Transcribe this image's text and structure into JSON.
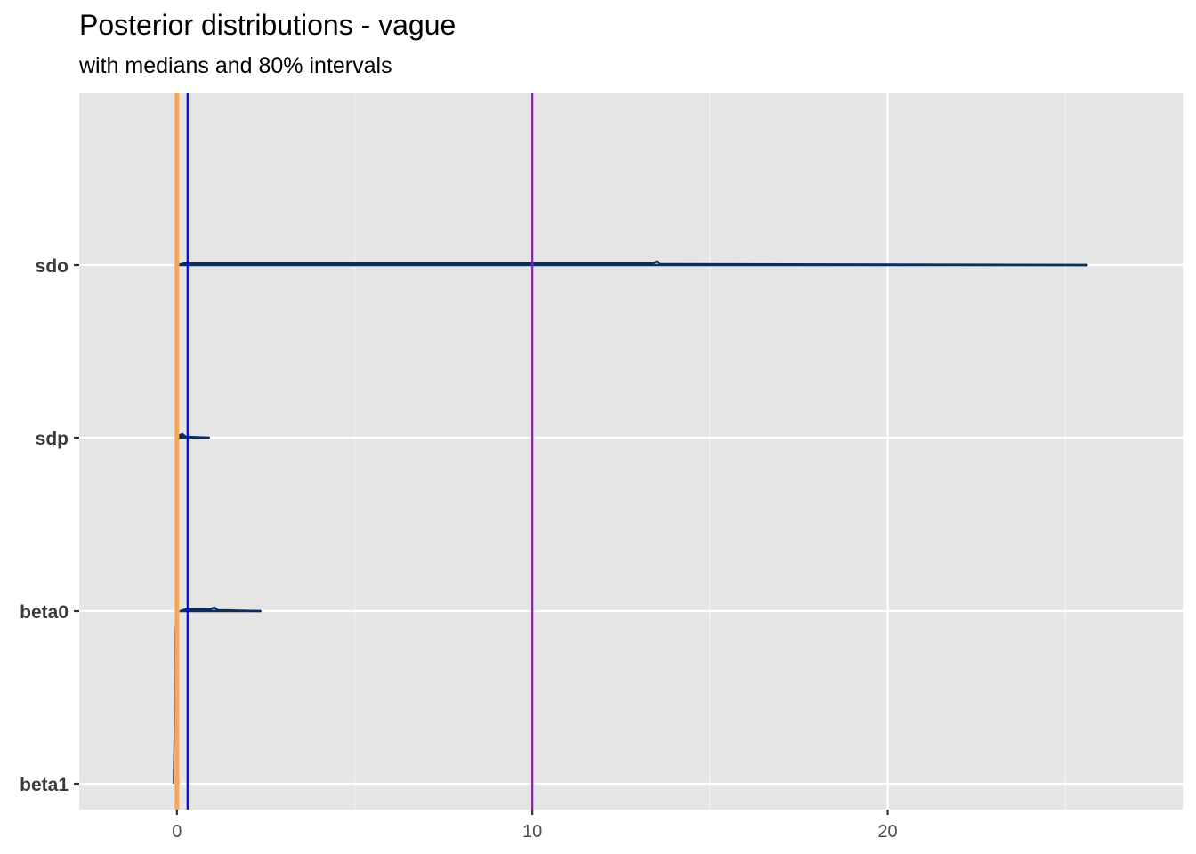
{
  "chart_data": {
    "type": "ridgeline",
    "title": "Posterior distributions - vague",
    "subtitle": "with medians and 80% intervals",
    "xlabel": "",
    "ylabel": "",
    "xlim": [
      -2.75,
      28.3
    ],
    "x_ticks": [
      0,
      10,
      20
    ],
    "categories": [
      "sdo",
      "sdp",
      "beta0",
      "beta1"
    ],
    "grid": true,
    "series": [
      {
        "category": "sdo",
        "x_min": 0.05,
        "x_max": 25.6,
        "median": 13.5,
        "color": "#0b2f5c"
      },
      {
        "category": "sdp",
        "x_min": 0.05,
        "x_max": 0.9,
        "median": 0.15,
        "color": "#0b2f5c"
      },
      {
        "category": "beta0",
        "x_min": 0.1,
        "x_max": 2.35,
        "median": 1.05,
        "color": "#0b2f5c"
      },
      {
        "category": "beta1",
        "x_min": -0.1,
        "x_max": 0.05,
        "median": -0.05,
        "color": "#333333"
      }
    ],
    "reference_lines": [
      {
        "x": 0.0,
        "color": "#ffa54f"
      },
      {
        "x": 0.3,
        "color": "#0000ff"
      },
      {
        "x": 10,
        "color": "#8a12e0"
      }
    ]
  }
}
